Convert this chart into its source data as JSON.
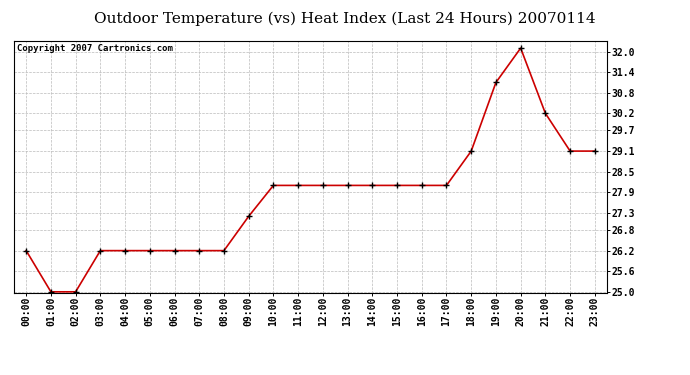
{
  "title": "Outdoor Temperature (vs) Heat Index (Last 24 Hours) 20070114",
  "copyright_text": "Copyright 2007 Cartronics.com",
  "x_labels": [
    "00:00",
    "01:00",
    "02:00",
    "03:00",
    "04:00",
    "05:00",
    "06:00",
    "07:00",
    "08:00",
    "09:00",
    "10:00",
    "11:00",
    "12:00",
    "13:00",
    "14:00",
    "15:00",
    "16:00",
    "17:00",
    "18:00",
    "19:00",
    "20:00",
    "21:00",
    "22:00",
    "23:00"
  ],
  "y_values": [
    26.2,
    25.0,
    25.0,
    26.2,
    26.2,
    26.2,
    26.2,
    26.2,
    26.2,
    27.2,
    28.1,
    28.1,
    28.1,
    28.1,
    28.1,
    28.1,
    28.1,
    28.1,
    29.1,
    31.1,
    32.1,
    30.2,
    29.1,
    29.1
  ],
  "ylim_min": 25.0,
  "ylim_max": 32.3,
  "yticks": [
    25.0,
    25.6,
    26.2,
    26.8,
    27.3,
    27.9,
    28.5,
    29.1,
    29.7,
    30.2,
    30.8,
    31.4,
    32.0
  ],
  "line_color": "#cc0000",
  "marker_color": "#000000",
  "bg_color": "#ffffff",
  "plot_bg_color": "#ffffff",
  "grid_color": "#bbbbbb",
  "title_fontsize": 11,
  "tick_fontsize": 7,
  "copyright_fontsize": 6.5
}
